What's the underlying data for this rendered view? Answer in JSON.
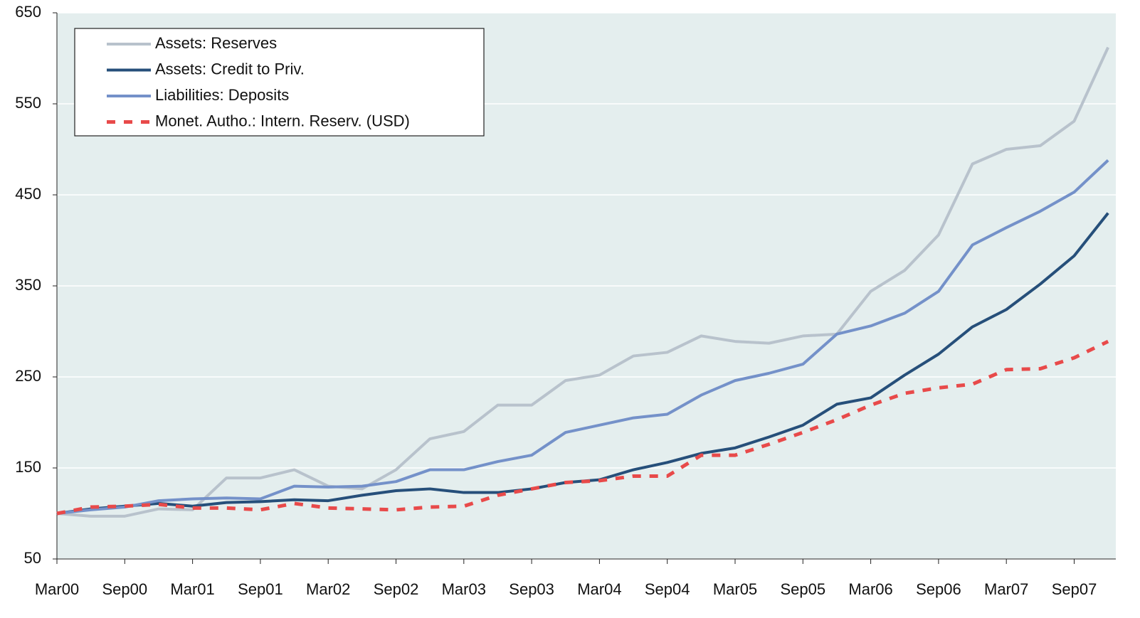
{
  "chart_data": {
    "type": "line",
    "categories": [
      "Mar00",
      null,
      "Sep00",
      null,
      "Mar01",
      null,
      "Sep01",
      null,
      "Mar02",
      null,
      "Sep02",
      null,
      "Mar03",
      null,
      "Sep03",
      null,
      "Mar04",
      null,
      "Sep04",
      null,
      "Mar05",
      null,
      "Sep05",
      null,
      "Mar06",
      null,
      "Sep06",
      null,
      "Mar07",
      null,
      "Sep07",
      null
    ],
    "series": [
      {
        "name": "Assets: Reserves",
        "color": "#b8c2cc",
        "dashed": false,
        "values": [
          100,
          97,
          97,
          105,
          104,
          139,
          139,
          148,
          130,
          127,
          148,
          182,
          190,
          219,
          219,
          246,
          252,
          273,
          277,
          295,
          289,
          287,
          295,
          297,
          344,
          367,
          406,
          484,
          500,
          504,
          531,
          612
        ]
      },
      {
        "name": "Assets: Credit to Priv.",
        "color": "#264f7a",
        "dashed": false,
        "values": [
          100,
          105,
          108,
          111,
          108,
          112,
          113,
          115,
          114,
          120,
          125,
          127,
          123,
          123,
          127,
          134,
          137,
          148,
          156,
          166,
          172,
          184,
          197,
          220,
          227,
          252,
          275,
          305,
          324,
          352,
          383,
          430
        ]
      },
      {
        "name": "Liabilities: Deposits",
        "color": "#7491c9",
        "dashed": false,
        "values": [
          100,
          104,
          107,
          114,
          116,
          117,
          116,
          130,
          129,
          130,
          135,
          148,
          148,
          157,
          164,
          189,
          197,
          205,
          209,
          230,
          246,
          254,
          264,
          297,
          306,
          320,
          344,
          395,
          414,
          432,
          453,
          488
        ]
      },
      {
        "name": "Monet. Autho.: Intern. Reserv. (USD)",
        "color": "#e84a4a",
        "dashed": true,
        "values": [
          100,
          107,
          108,
          110,
          106,
          106,
          104,
          111,
          106,
          105,
          104,
          107,
          108,
          120,
          127,
          134,
          136,
          141,
          141,
          164,
          164,
          176,
          189,
          203,
          219,
          232,
          238,
          242,
          258,
          259,
          271,
          289
        ]
      }
    ],
    "ylim": [
      50,
      650
    ],
    "yticks": [
      50,
      150,
      250,
      350,
      450,
      550,
      650
    ],
    "grid": true,
    "legend": "upper left"
  }
}
